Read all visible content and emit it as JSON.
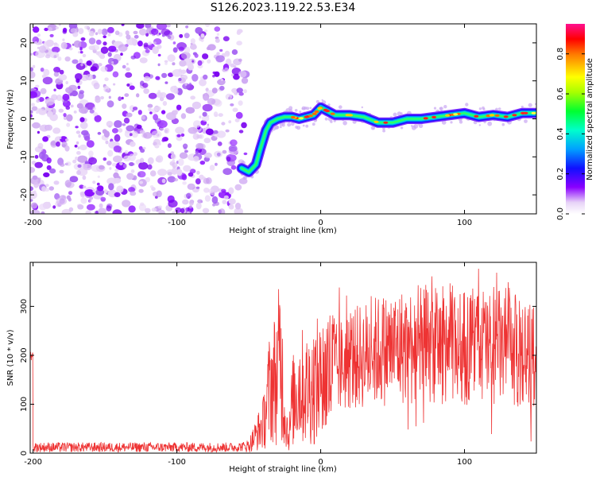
{
  "figure": {
    "title": "S126.2023.119.22.53.E34"
  },
  "chart_data": [
    {
      "type": "heatmap",
      "xlabel": "Height of straight line (km)",
      "ylabel": "Frequency (Hz)",
      "xlim": [
        -202,
        150
      ],
      "ylim": [
        -25,
        25
      ],
      "xticks": [
        -200,
        -100,
        0,
        100
      ],
      "yticks": [
        -20,
        -10,
        0,
        10,
        20
      ],
      "noise_region_x": [
        -202,
        -52
      ],
      "signal_track": {
        "x": [
          -55,
          -50,
          -45,
          -42,
          -38,
          -35,
          -30,
          -25,
          -20,
          -15,
          -10,
          -5,
          0,
          5,
          10,
          20,
          30,
          40,
          50,
          60,
          70,
          80,
          90,
          100,
          110,
          120,
          130,
          140,
          150
        ],
        "y": [
          -13,
          -14,
          -12,
          -8,
          -3,
          -1,
          0,
          0.5,
          0.5,
          0,
          0.5,
          1,
          3,
          2,
          1,
          1,
          0.5,
          -1,
          -1,
          0,
          0,
          0.5,
          1,
          1.5,
          0.5,
          1,
          0.5,
          1.5,
          1.5
        ]
      },
      "colorbar": {
        "label": "Normalized spectral amplitude",
        "range": [
          0,
          0.95
        ],
        "ticks": [
          0.0,
          0.2,
          0.4,
          0.6,
          0.8
        ],
        "tick_labels": [
          "0.0",
          "0.2",
          "0.4",
          "0.6",
          "0.8"
        ]
      },
      "grid": false
    },
    {
      "type": "line",
      "xlabel": "Height of straight line (km)",
      "ylabel": "SNR (10 * v/v)",
      "xlim": [
        -202,
        150
      ],
      "ylim": [
        0,
        390
      ],
      "xticks": [
        -200,
        -100,
        0,
        100
      ],
      "yticks": [
        0,
        100,
        200,
        300
      ],
      "color": "#ee3333",
      "series": [
        {
          "x": [
            -200,
            -150,
            -100,
            -60,
            -50,
            -40,
            -35,
            -30,
            -28,
            -25,
            -22,
            -20,
            -15,
            -10,
            0,
            10,
            20,
            30,
            40,
            50,
            60,
            70,
            80,
            90,
            100,
            110,
            120,
            130,
            140,
            150
          ],
          "y": [
            12,
            12,
            12,
            12,
            15,
            60,
            140,
            160,
            210,
            80,
            30,
            100,
            140,
            130,
            150,
            170,
            190,
            200,
            210,
            215,
            220,
            225,
            220,
            225,
            215,
            225,
            215,
            220,
            200,
            200
          ]
        }
      ],
      "grid": false
    }
  ]
}
